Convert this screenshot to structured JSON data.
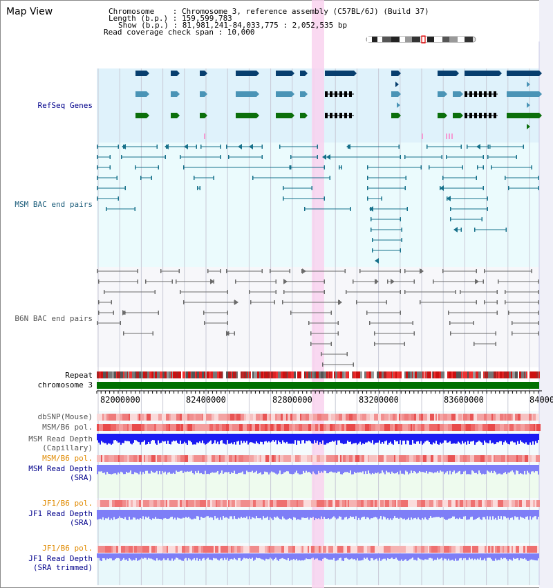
{
  "title": "Map View",
  "info": {
    "chromosome": "Chromosome    : Chromosome 3, reference assembly (C57BL/6J) (Build 37)",
    "length": "Length (b.p.) : 159,599,783",
    "show": "Show (b.p.) : 81,981,241-84,033,775 : 2,052,535 bp",
    "coverage": "Read coverage check span : 10,000"
  },
  "range": {
    "start": 81981241,
    "end": 84033775
  },
  "highlight": {
    "start": 82940000,
    "end": 82990000
  },
  "tracks": {
    "refseq": "RefSeq Genes",
    "msm_bac": "MSM BAC end pairs",
    "b6n_bac": "B6N BAC end pairs",
    "repeat": "Repeat",
    "chromosome": "chromosome 3",
    "dbsnp": "dbSNP(Mouse)",
    "msm_b6_pol_1": "MSM/B6 pol.",
    "msm_depth_cap_1": "MSM Read Depth",
    "msm_depth_cap_2": "(Capillary)",
    "msm_b6_pol_2": "MSM/B6 pol.",
    "msm_depth_sra_1": "MSM Read Depth",
    "msm_depth_sra_2": "(SRA)",
    "jf1_b6_pol_1": "JF1/B6 pol.",
    "jf1_depth_sra_1": "JF1 Read Depth",
    "jf1_depth_sra_2": "(SRA)",
    "jf1_b6_pol_2": "JF1/B6 pol.",
    "jf1_depth_trim_1": "JF1 Read Depth",
    "jf1_depth_trim_2": "(SRA trimmed)"
  },
  "axis_ticks": [
    "82000000",
    "82400000",
    "82800000",
    "83200000",
    "83600000",
    "84000000"
  ],
  "colors": {
    "refseq_bg": "#dff2fb",
    "msm_bg": "#ebfbfd",
    "b6n_bg": "#f7f7fa",
    "gene_navy": "#073e6e",
    "gene_teal": "#4a94b6",
    "gene_green": "#0b6f0b",
    "msm_pair": "#16708a",
    "b6n_pair": "#6b6b6b",
    "chromosome": "#007000",
    "depth_blue": "#1c1cf2",
    "depth_light": "#7e7ef7",
    "highlight": "#f9d2ef",
    "label_navy": "#00008b",
    "label_teal": "#1a5c7a",
    "label_gray": "#555555",
    "label_orange": "#e08a00"
  }
}
